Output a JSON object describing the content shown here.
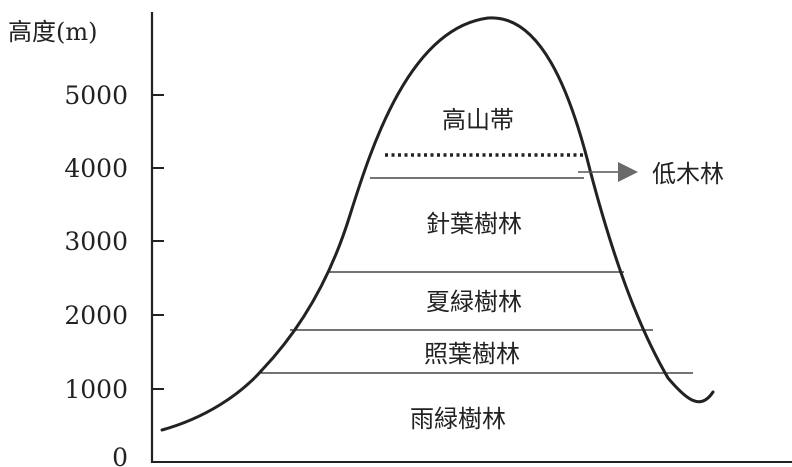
{
  "diagram": {
    "y_axis_label": "高度(m)",
    "y_ticks": [
      "0",
      "1000",
      "2000",
      "3000",
      "4000",
      "5000"
    ],
    "zones": [
      {
        "name": "雨緑樹林"
      },
      {
        "name": "照葉樹林"
      },
      {
        "name": "夏緑樹林"
      },
      {
        "name": "針葉樹林"
      },
      {
        "name": "高山帯"
      }
    ],
    "callout": "低木林",
    "colors": {
      "ink": "#222222",
      "arrow": "#6a6a6a"
    }
  }
}
